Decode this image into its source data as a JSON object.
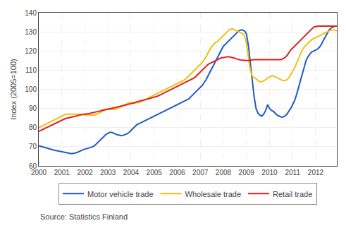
{
  "chart_data": {
    "type": "line",
    "ylabel": "Index (2005=100)",
    "annotations": [
      "Source: Statistics Finland"
    ],
    "x": [
      2000,
      2000.0833333333333,
      2000.1666666666667,
      2000.25,
      2000.3333333333333,
      2000.4166666666667,
      2000.5,
      2000.5833333333333,
      2000.6666666666667,
      2000.75,
      2000.8333333333333,
      2000.9166666666667,
      2001,
      2001.0833333333333,
      2001.1666666666667,
      2001.25,
      2001.3333333333333,
      2001.4166666666667,
      2001.5,
      2001.5833333333333,
      2001.6666666666667,
      2001.75,
      2001.8333333333333,
      2001.9166666666667,
      2002,
      2002.0833333333333,
      2002.1666666666667,
      2002.25,
      2002.3333333333333,
      2002.4166666666667,
      2002.5,
      2002.5833333333333,
      2002.6666666666667,
      2002.75,
      2002.8333333333333,
      2002.9166666666667,
      2003,
      2003.0833333333333,
      2003.1666666666667,
      2003.25,
      2003.3333333333333,
      2003.4166666666667,
      2003.5,
      2003.5833333333333,
      2003.6666666666667,
      2003.75,
      2003.8333333333333,
      2003.9166666666667,
      2004,
      2004.0833333333333,
      2004.1666666666667,
      2004.25,
      2004.3333333333333,
      2004.4166666666667,
      2004.5,
      2004.5833333333333,
      2004.6666666666667,
      2004.75,
      2004.8333333333333,
      2004.9166666666667,
      2005,
      2005.0833333333333,
      2005.1666666666667,
      2005.25,
      2005.3333333333333,
      2005.4166666666667,
      2005.5,
      2005.5833333333333,
      2005.6666666666667,
      2005.75,
      2005.8333333333333,
      2005.9166666666667,
      2006,
      2006.0833333333333,
      2006.1666666666667,
      2006.25,
      2006.3333333333333,
      2006.4166666666667,
      2006.5,
      2006.5833333333333,
      2006.6666666666667,
      2006.75,
      2006.8333333333333,
      2006.9166666666667,
      2007,
      2007.0833333333333,
      2007.1666666666667,
      2007.25,
      2007.3333333333333,
      2007.4166666666667,
      2007.5,
      2007.5833333333333,
      2007.6666666666667,
      2007.75,
      2007.8333333333333,
      2007.9166666666667,
      2008,
      2008.0833333333333,
      2008.1666666666667,
      2008.25,
      2008.3333333333333,
      2008.4166666666667,
      2008.5,
      2008.5833333333333,
      2008.6666666666667,
      2008.75,
      2008.8333333333333,
      2008.9166666666667,
      2009,
      2009.0833333333333,
      2009.1666666666667,
      2009.25,
      2009.3333333333333,
      2009.4166666666667,
      2009.5,
      2009.5833333333333,
      2009.6666666666667,
      2009.75,
      2009.8333333333333,
      2009.9166666666667,
      2010,
      2010.0833333333333,
      2010.1666666666667,
      2010.25,
      2010.3333333333333,
      2010.4166666666667,
      2010.5,
      2010.5833333333333,
      2010.6666666666667,
      2010.75,
      2010.8333333333333,
      2010.9166666666667,
      2011,
      2011.0833333333333,
      2011.1666666666667,
      2011.25,
      2011.3333333333333,
      2011.4166666666667,
      2011.5,
      2011.5833333333333,
      2011.6666666666667,
      2011.75,
      2011.8333333333333,
      2011.9166666666667,
      2012,
      2012.0833333333333,
      2012.1666666666667,
      2012.25,
      2012.3333333333333,
      2012.4166666666667,
      2012.5,
      2012.5833333333333,
      2012.6666666666667,
      2012.75,
      2012.8333333333333,
      2012.9166666666667
    ],
    "series": [
      {
        "name": "Motor vehicle trade",
        "color": "#1f5bc4",
        "values": [
          70.5,
          70.2,
          69.8,
          69.5,
          69.3,
          69.0,
          68.8,
          68.5,
          68.2,
          68.0,
          67.8,
          67.5,
          67.3,
          67.1,
          66.9,
          66.7,
          66.5,
          66.4,
          66.5,
          66.7,
          67.0,
          67.5,
          68.0,
          68.5,
          68.8,
          69.0,
          69.3,
          69.5,
          70.0,
          70.5,
          71.5,
          72.5,
          73.5,
          74.5,
          75.5,
          76.5,
          77.0,
          77.5,
          77.5,
          77.0,
          76.5,
          76.2,
          76.0,
          75.8,
          76.0,
          76.3,
          76.8,
          77.5,
          78.5,
          79.5,
          80.5,
          81.5,
          82.0,
          82.5,
          83.0,
          83.5,
          84.0,
          84.5,
          85.0,
          85.5,
          86.0,
          86.5,
          87.0,
          87.5,
          88.0,
          88.5,
          89.0,
          89.5,
          90.0,
          90.5,
          91.0,
          91.5,
          92.0,
          92.5,
          93.0,
          93.5,
          94.0,
          94.5,
          95.0,
          96.0,
          97.0,
          98.0,
          99.0,
          100.0,
          101.0,
          102.0,
          103.5,
          105.0,
          107.0,
          109.0,
          111.0,
          113.0,
          115.0,
          117.0,
          119.0,
          121.0,
          122.5,
          123.5,
          124.5,
          125.5,
          126.5,
          127.5,
          128.5,
          129.5,
          130.5,
          131.0,
          131.0,
          130.5,
          129.0,
          123.0,
          115.0,
          105.0,
          96.0,
          90.0,
          87.5,
          86.5,
          86.0,
          87.0,
          89.0,
          92.0,
          90.0,
          89.0,
          88.5,
          87.5,
          86.5,
          86.0,
          85.5,
          85.5,
          86.0,
          87.0,
          88.5,
          90.0,
          92.0,
          94.0,
          97.0,
          100.5,
          104.0,
          108.0,
          112.0,
          115.0,
          117.0,
          118.5,
          119.5,
          120.0,
          120.5,
          121.0,
          122.0,
          123.5,
          125.5,
          127.5,
          129.5,
          131.0,
          132.0,
          132.5,
          133.0,
          133.0
        ]
      },
      {
        "name": "Wholesale trade",
        "color": "#f0c010",
        "values": [
          80.0,
          80.5,
          81.0,
          81.5,
          82.0,
          82.5,
          83.0,
          83.5,
          84.0,
          84.5,
          85.0,
          85.5,
          86.0,
          86.5,
          87.0,
          87.0,
          87.0,
          87.0,
          87.0,
          87.0,
          87.0,
          87.0,
          87.0,
          87.0,
          86.5,
          86.5,
          86.5,
          86.5,
          86.5,
          86.5,
          87.0,
          87.5,
          88.0,
          88.5,
          89.0,
          89.5,
          89.5,
          89.5,
          89.5,
          89.5,
          89.5,
          90.0,
          90.5,
          91.0,
          91.5,
          92.0,
          92.5,
          93.0,
          93.0,
          93.0,
          93.0,
          93.0,
          93.0,
          93.5,
          94.0,
          94.5,
          95.0,
          95.5,
          96.0,
          96.5,
          97.0,
          97.5,
          98.0,
          98.5,
          99.0,
          99.5,
          100.0,
          100.5,
          101.0,
          101.5,
          102.0,
          102.5,
          103.0,
          103.5,
          104.0,
          104.5,
          105.0,
          106.0,
          107.0,
          108.0,
          109.0,
          110.0,
          111.0,
          112.0,
          113.0,
          114.0,
          115.5,
          117.0,
          119.0,
          121.0,
          122.5,
          123.5,
          124.5,
          125.0,
          126.0,
          127.0,
          128.0,
          129.0,
          130.0,
          131.0,
          131.5,
          131.5,
          131.0,
          130.5,
          130.0,
          129.5,
          129.0,
          128.0,
          124.0,
          117.0,
          110.0,
          107.0,
          106.0,
          105.5,
          104.5,
          104.0,
          104.0,
          104.5,
          105.0,
          106.0,
          106.5,
          107.0,
          107.0,
          106.5,
          106.0,
          105.5,
          105.0,
          104.5,
          104.5,
          105.0,
          106.0,
          107.5,
          109.0,
          111.0,
          113.5,
          116.0,
          118.5,
          120.5,
          122.0,
          123.0,
          124.0,
          125.0,
          126.0,
          126.5,
          127.0,
          127.5,
          128.0,
          128.5,
          129.0,
          129.5,
          130.0,
          130.5,
          131.0,
          131.0,
          131.0,
          130.5
        ]
      },
      {
        "name": "Retail trade",
        "color": "#e0201c",
        "values": [
          78.0,
          78.5,
          79.0,
          79.5,
          80.0,
          80.5,
          81.0,
          81.5,
          82.0,
          82.5,
          83.0,
          83.5,
          84.0,
          84.5,
          84.8,
          85.0,
          85.2,
          85.5,
          85.7,
          86.0,
          86.2,
          86.5,
          86.7,
          87.0,
          87.0,
          87.2,
          87.3,
          87.5,
          87.7,
          88.0,
          88.2,
          88.5,
          88.7,
          89.0,
          89.2,
          89.5,
          89.5,
          89.7,
          90.0,
          90.2,
          90.5,
          90.8,
          91.0,
          91.3,
          91.5,
          91.7,
          92.0,
          92.3,
          92.5,
          92.7,
          93.0,
          93.5,
          93.8,
          94.0,
          94.3,
          94.5,
          94.7,
          95.0,
          95.3,
          95.5,
          95.7,
          96.0,
          96.5,
          97.0,
          97.5,
          98.0,
          98.5,
          99.0,
          99.5,
          100.0,
          100.5,
          101.0,
          101.5,
          102.0,
          102.5,
          103.0,
          103.5,
          104.0,
          104.5,
          105.0,
          105.5,
          106.0,
          107.0,
          108.0,
          109.0,
          110.0,
          111.0,
          112.0,
          113.0,
          113.5,
          114.0,
          114.5,
          115.0,
          115.5,
          116.0,
          116.5,
          116.5,
          116.8,
          117.0,
          117.0,
          116.8,
          116.5,
          116.2,
          115.8,
          115.5,
          115.3,
          115.2,
          115.0,
          115.0,
          115.0,
          115.2,
          115.3,
          115.5,
          115.5,
          115.5,
          115.5,
          115.5,
          115.5,
          115.5,
          115.5,
          115.5,
          115.5,
          115.5,
          115.5,
          115.5,
          115.5,
          115.5,
          116.0,
          116.5,
          117.5,
          119.0,
          120.5,
          121.5,
          122.5,
          123.5,
          124.5,
          125.5,
          126.5,
          127.5,
          128.5,
          129.5,
          130.5,
          131.5,
          132.5,
          132.8,
          133.0,
          133.0,
          133.0,
          133.0,
          133.0,
          133.0,
          133.0,
          133.0,
          133.0,
          133.0,
          133.0
        ]
      }
    ],
    "xlim": [
      2000.0,
      2012.917
    ],
    "xticks": [
      2000,
      2001,
      2002,
      2003,
      2004,
      2005,
      2006,
      2007,
      2008,
      2009,
      2010,
      2011,
      2012
    ],
    "ylim": [
      60,
      140
    ],
    "yticks": [
      60,
      70,
      80,
      90,
      100,
      110,
      120,
      130,
      140
    ],
    "grid": true,
    "legend": "bottom"
  }
}
